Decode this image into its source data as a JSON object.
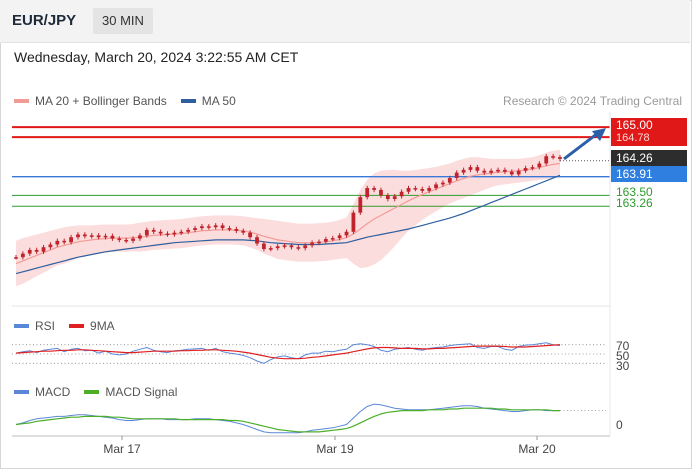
{
  "header": {
    "symbol": "EUR/JPY",
    "timeframe": "30 MIN",
    "datetime": "Wednesday, March 20, 2024 3:22:55 AM CET"
  },
  "legend": {
    "main": [
      {
        "label": "MA 20 + Bollinger Bands",
        "color": "#f29b96"
      },
      {
        "label": "MA 50",
        "color": "#2f5f9e"
      }
    ],
    "rsi": [
      {
        "label": "RSI",
        "color": "#5b87d8"
      },
      {
        "label": "9MA",
        "color": "#e02020"
      }
    ],
    "macd": [
      {
        "label": "MACD",
        "color": "#5b87d8"
      },
      {
        "label": "MACD Signal",
        "color": "#4caf2a"
      }
    ]
  },
  "credit": "Research © 2024 Trading Central",
  "price_tags": {
    "target_top": "165.00",
    "target_hidden": "164.78",
    "current": "164.26",
    "ma50": "163.91",
    "support1": "163.50",
    "support2": "163.26"
  },
  "rsi_levels": [
    "70",
    "50",
    "30"
  ],
  "macd_zero": "0",
  "x_labels": [
    "Mar 17",
    "Mar 19",
    "Mar 20"
  ],
  "colors": {
    "resistance": "#e01818",
    "ma50_line": "#3a78d8",
    "support": "#2e9b2e",
    "candle": "#c0232c",
    "bb_band": "#fbd4d4",
    "current_tag": "#2d2d2d",
    "arrow": "#2d5fa8"
  },
  "chart_data": {
    "type": "line",
    "title": "EUR/JPY",
    "timeframe": "30 MIN",
    "x_ticks": [
      "Mar 17",
      "Mar 19",
      "Mar 20"
    ],
    "price_ylim": [
      161.2,
      165.2
    ],
    "horizontal_levels": [
      {
        "value": 165.0,
        "kind": "resistance"
      },
      {
        "value": 164.78,
        "kind": "resistance"
      },
      {
        "value": 164.26,
        "kind": "current"
      },
      {
        "value": 163.91,
        "kind": "ma50-level"
      },
      {
        "value": 163.5,
        "kind": "support"
      },
      {
        "value": 163.26,
        "kind": "support"
      }
    ],
    "price_close": [
      162.14,
      162.22,
      162.3,
      162.26,
      162.36,
      162.42,
      162.5,
      162.47,
      162.58,
      162.64,
      162.6,
      162.62,
      162.58,
      162.61,
      162.55,
      162.52,
      162.5,
      162.55,
      162.62,
      162.74,
      162.7,
      162.66,
      162.64,
      162.68,
      162.7,
      162.74,
      162.78,
      162.82,
      162.8,
      162.84,
      162.78,
      162.76,
      162.72,
      162.68,
      162.58,
      162.44,
      162.32,
      162.34,
      162.38,
      162.4,
      162.36,
      162.34,
      162.4,
      162.46,
      162.48,
      162.54,
      162.56,
      162.62,
      162.7,
      163.12,
      163.46,
      163.66,
      163.62,
      163.5,
      163.42,
      163.48,
      163.58,
      163.66,
      163.64,
      163.6,
      163.66,
      163.74,
      163.78,
      163.88,
      164.0,
      164.06,
      164.12,
      164.04,
      164.0,
      164.04,
      164.06,
      164.02,
      163.96,
      164.04,
      164.1,
      164.12,
      164.2,
      164.36,
      164.34,
      164.3
    ],
    "ma20": [
      162.0,
      162.06,
      162.12,
      162.18,
      162.24,
      162.3,
      162.36,
      162.4,
      162.44,
      162.48,
      162.5,
      162.52,
      162.54,
      162.55,
      162.56,
      162.56,
      162.56,
      162.57,
      162.58,
      162.6,
      162.62,
      162.63,
      162.64,
      162.65,
      162.66,
      162.68,
      162.7,
      162.72,
      162.73,
      162.74,
      162.74,
      162.74,
      162.73,
      162.72,
      162.69,
      162.65,
      162.6,
      162.56,
      162.52,
      162.5,
      162.48,
      162.46,
      162.46,
      162.46,
      162.47,
      162.48,
      162.5,
      162.53,
      162.57,
      162.65,
      162.76,
      162.88,
      162.98,
      163.06,
      163.14,
      163.22,
      163.3,
      163.38,
      163.45,
      163.52,
      163.58,
      163.64,
      163.7,
      163.76,
      163.82,
      163.87,
      163.92,
      163.95,
      163.97,
      163.99,
      164.01,
      164.02,
      164.03,
      164.04,
      164.06,
      164.08,
      164.11,
      164.15,
      164.18,
      164.2
    ],
    "bb_upper": [
      162.5,
      162.56,
      162.6,
      162.64,
      162.68,
      162.72,
      162.76,
      162.8,
      162.82,
      162.84,
      162.84,
      162.84,
      162.85,
      162.86,
      162.86,
      162.86,
      162.86,
      162.87,
      162.9,
      162.92,
      162.94,
      162.95,
      162.96,
      162.97,
      162.98,
      163.0,
      163.02,
      163.04,
      163.05,
      163.06,
      163.06,
      163.06,
      163.05,
      163.04,
      163.02,
      163.0,
      162.98,
      162.96,
      162.94,
      162.92,
      162.9,
      162.88,
      162.88,
      162.88,
      162.89,
      162.9,
      162.92,
      162.96,
      163.02,
      163.3,
      163.62,
      163.84,
      163.98,
      164.04,
      164.06,
      164.06,
      164.04,
      164.04,
      164.06,
      164.08,
      164.1,
      164.13,
      164.16,
      164.2,
      164.26,
      164.3,
      164.34,
      164.34,
      164.32,
      164.3,
      164.3,
      164.3,
      164.3,
      164.3,
      164.32,
      164.34,
      164.38,
      164.44,
      164.48,
      164.5
    ],
    "bb_lower": [
      161.5,
      161.56,
      161.64,
      161.72,
      161.8,
      161.88,
      161.96,
      162.0,
      162.06,
      162.12,
      162.16,
      162.2,
      162.23,
      162.24,
      162.26,
      162.26,
      162.26,
      162.27,
      162.26,
      162.28,
      162.3,
      162.31,
      162.32,
      162.33,
      162.34,
      162.36,
      162.38,
      162.4,
      162.41,
      162.42,
      162.42,
      162.42,
      162.41,
      162.4,
      162.36,
      162.3,
      162.22,
      162.16,
      162.1,
      162.08,
      162.06,
      162.04,
      162.04,
      162.04,
      162.05,
      162.06,
      162.08,
      162.1,
      162.12,
      162.0,
      161.9,
      161.92,
      161.98,
      162.08,
      162.22,
      162.38,
      162.56,
      162.72,
      162.84,
      162.96,
      163.06,
      163.15,
      163.24,
      163.32,
      163.38,
      163.44,
      163.5,
      163.56,
      163.62,
      163.68,
      163.72,
      163.74,
      163.76,
      163.78,
      163.8,
      163.82,
      163.84,
      163.86,
      163.88,
      163.9
    ],
    "ma50": [
      161.78,
      161.82,
      161.86,
      161.9,
      161.94,
      161.98,
      162.02,
      162.06,
      162.1,
      162.14,
      162.17,
      162.2,
      162.23,
      162.26,
      162.28,
      162.3,
      162.32,
      162.34,
      162.36,
      162.38,
      162.4,
      162.42,
      162.44,
      162.46,
      162.47,
      162.48,
      162.49,
      162.5,
      162.51,
      162.52,
      162.52,
      162.52,
      162.52,
      162.52,
      162.51,
      162.5,
      162.48,
      162.46,
      162.45,
      162.44,
      162.43,
      162.42,
      162.42,
      162.42,
      162.42,
      162.43,
      162.44,
      162.45,
      162.46,
      162.5,
      162.54,
      162.58,
      162.61,
      162.64,
      162.67,
      162.7,
      162.73,
      162.76,
      162.8,
      162.84,
      162.88,
      162.92,
      162.96,
      163.0,
      163.05,
      163.1,
      163.16,
      163.22,
      163.28,
      163.34,
      163.4,
      163.46,
      163.52,
      163.58,
      163.64,
      163.7,
      163.76,
      163.82,
      163.88,
      163.94
    ],
    "rsi": [
      52,
      55,
      57,
      53,
      58,
      60,
      62,
      55,
      60,
      62,
      57,
      58,
      52,
      56,
      50,
      48,
      50,
      56,
      60,
      64,
      58,
      55,
      53,
      57,
      58,
      60,
      61,
      62,
      58,
      62,
      55,
      52,
      50,
      47,
      42,
      35,
      30,
      38,
      44,
      46,
      42,
      40,
      48,
      52,
      52,
      56,
      55,
      58,
      60,
      70,
      72,
      70,
      66,
      58,
      55,
      60,
      62,
      64,
      60,
      58,
      62,
      64,
      65,
      68,
      70,
      71,
      72,
      64,
      62,
      66,
      66,
      60,
      58,
      66,
      69,
      70,
      72,
      74,
      70,
      68
    ],
    "rsi_9ma": [
      52,
      53,
      54,
      55,
      56,
      56,
      57,
      58,
      58,
      59,
      59,
      58,
      57,
      56,
      55,
      54,
      53,
      53,
      54,
      55,
      56,
      56,
      56,
      56,
      57,
      57,
      58,
      58,
      59,
      59,
      58,
      57,
      56,
      54,
      52,
      49,
      46,
      43,
      41,
      40,
      40,
      40,
      41,
      43,
      44,
      46,
      48,
      50,
      52,
      55,
      58,
      61,
      63,
      64,
      64,
      63,
      62,
      62,
      62,
      61,
      61,
      62,
      62,
      63,
      64,
      65,
      66,
      67,
      67,
      67,
      67,
      66,
      65,
      65,
      65,
      66,
      67,
      68,
      69,
      70
    ],
    "rsi_ylim": [
      20,
      80
    ],
    "macd": [
      0.0,
      0.02,
      0.05,
      0.07,
      0.08,
      0.09,
      0.1,
      0.1,
      0.11,
      0.12,
      0.12,
      0.11,
      0.1,
      0.09,
      0.08,
      0.06,
      0.05,
      0.05,
      0.06,
      0.07,
      0.07,
      0.07,
      0.06,
      0.06,
      0.06,
      0.06,
      0.07,
      0.07,
      0.07,
      0.06,
      0.05,
      0.04,
      0.02,
      0.0,
      -0.03,
      -0.06,
      -0.09,
      -0.1,
      -0.1,
      -0.1,
      -0.1,
      -0.1,
      -0.09,
      -0.07,
      -0.06,
      -0.05,
      -0.04,
      -0.02,
      0.0,
      0.08,
      0.16,
      0.22,
      0.25,
      0.24,
      0.22,
      0.2,
      0.19,
      0.18,
      0.18,
      0.18,
      0.18,
      0.19,
      0.2,
      0.21,
      0.22,
      0.23,
      0.23,
      0.22,
      0.2,
      0.19,
      0.18,
      0.17,
      0.16,
      0.16,
      0.17,
      0.18,
      0.18,
      0.17,
      0.17,
      0.17
    ],
    "macd_signal": [
      0.0,
      0.01,
      0.02,
      0.04,
      0.05,
      0.06,
      0.07,
      0.08,
      0.09,
      0.09,
      0.1,
      0.1,
      0.1,
      0.1,
      0.09,
      0.09,
      0.08,
      0.07,
      0.07,
      0.07,
      0.07,
      0.07,
      0.07,
      0.07,
      0.06,
      0.06,
      0.06,
      0.06,
      0.06,
      0.06,
      0.06,
      0.05,
      0.05,
      0.04,
      0.02,
      0.0,
      -0.02,
      -0.04,
      -0.06,
      -0.07,
      -0.08,
      -0.09,
      -0.09,
      -0.09,
      -0.09,
      -0.08,
      -0.07,
      -0.06,
      -0.05,
      -0.02,
      0.02,
      0.06,
      0.1,
      0.13,
      0.15,
      0.16,
      0.17,
      0.17,
      0.17,
      0.17,
      0.18,
      0.18,
      0.18,
      0.19,
      0.19,
      0.2,
      0.2,
      0.2,
      0.2,
      0.2,
      0.19,
      0.19,
      0.18,
      0.18,
      0.18,
      0.18,
      0.18,
      0.18,
      0.17,
      0.17
    ],
    "macd_ylim": [
      -0.14,
      0.3
    ]
  }
}
